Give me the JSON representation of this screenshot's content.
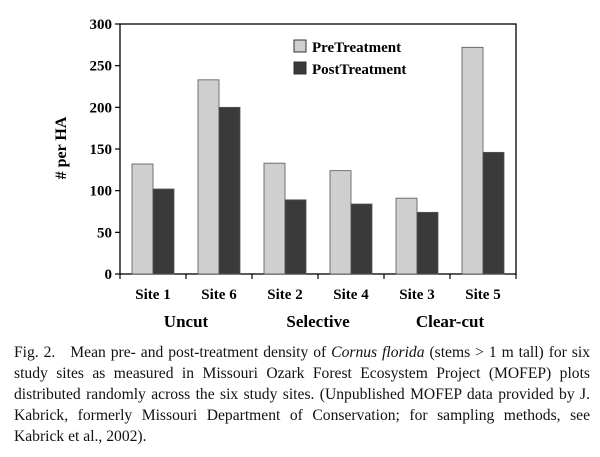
{
  "chart_data": {
    "type": "bar",
    "title": "",
    "xlabel": "",
    "ylabel": "# per HA",
    "ylim": [
      0,
      300
    ],
    "yticks": [
      0,
      50,
      100,
      150,
      200,
      250,
      300
    ],
    "categories": [
      "Site 1",
      "Site 6",
      "Site 2",
      "Site 4",
      "Site 3",
      "Site 5"
    ],
    "groups": [
      {
        "label": "Uncut",
        "categories": [
          "Site 1",
          "Site 6"
        ]
      },
      {
        "label": "Selective",
        "categories": [
          "Site 2",
          "Site 4"
        ]
      },
      {
        "label": "Clear-cut",
        "categories": [
          "Site 3",
          "Site 5"
        ]
      }
    ],
    "series": [
      {
        "name": "PreTreatment",
        "color": "#cfcfcf",
        "values": [
          132,
          233,
          133,
          124,
          91,
          272
        ]
      },
      {
        "name": "PostTreatment",
        "color": "#3a3a3a",
        "values": [
          102,
          200,
          89,
          84,
          74,
          146
        ]
      }
    ],
    "grid": false,
    "legend_position": "top-right"
  },
  "caption": {
    "figure_number": "Fig. 2.",
    "text_before_species": "Mean pre- and post-treatment density of",
    "species": "Cornus florida",
    "text_after_species": "(stems > 1 m tall) for six study sites as measured in Missouri Ozark Forest Ecosystem Project (MOFEP) plots distributed randomly across the six study sites. (Unpublished MOFEP data provided by J. Kabrick, formerly Missouri Department of Conservation; for sampling methods, see Kabrick et al., 2002)."
  }
}
